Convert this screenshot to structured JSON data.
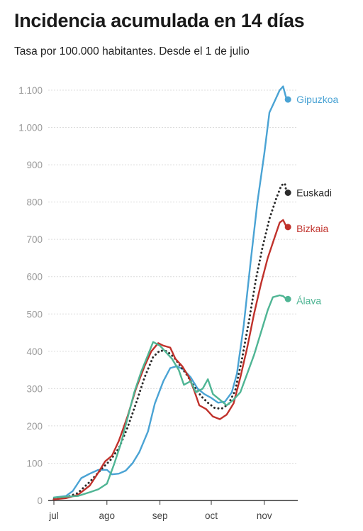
{
  "chart_data": {
    "type": "line",
    "title": "Incidencia acumulada en 14 días",
    "subtitle": "Tasa por 100.000 habitantes. Desde el 1 de julio",
    "xlabel": "",
    "ylabel": "",
    "ylim": [
      0,
      1100
    ],
    "yticks": [
      0,
      100,
      200,
      300,
      400,
      500,
      600,
      700,
      800,
      900,
      1000,
      1100
    ],
    "ytick_labels": [
      "0",
      "100",
      "200",
      "300",
      "400",
      "500",
      "600",
      "700",
      "800",
      "900",
      "1.000",
      "1.100"
    ],
    "xlim": [
      "2020-07-01",
      "2020-11-17"
    ],
    "xticks": [
      {
        "date": "2020-07-01",
        "label": "jul"
      },
      {
        "date": "2020-08-01",
        "label": "ago"
      },
      {
        "date": "2020-09-01",
        "label": "sep"
      },
      {
        "date": "2020-10-01",
        "label": "oct"
      },
      {
        "date": "2020-11-01",
        "label": "nov"
      }
    ],
    "grid": true,
    "legend": "end-of-line labels",
    "series": [
      {
        "name": "Gipuzkoa",
        "color": "#4aa3d4",
        "style": "solid",
        "points": [
          [
            "2020-07-01",
            8
          ],
          [
            "2020-07-08",
            12
          ],
          [
            "2020-07-12",
            25
          ],
          [
            "2020-07-17",
            60
          ],
          [
            "2020-07-22",
            72
          ],
          [
            "2020-07-27",
            82
          ],
          [
            "2020-08-01",
            82
          ],
          [
            "2020-08-04",
            70
          ],
          [
            "2020-08-08",
            72
          ],
          [
            "2020-08-12",
            80
          ],
          [
            "2020-08-16",
            100
          ],
          [
            "2020-08-20",
            130
          ],
          [
            "2020-08-25",
            185
          ],
          [
            "2020-08-29",
            260
          ],
          [
            "2020-09-03",
            320
          ],
          [
            "2020-09-07",
            355
          ],
          [
            "2020-09-11",
            360
          ],
          [
            "2020-09-15",
            350
          ],
          [
            "2020-09-19",
            330
          ],
          [
            "2020-09-23",
            300
          ],
          [
            "2020-09-27",
            285
          ],
          [
            "2020-10-01",
            275
          ],
          [
            "2020-10-05",
            262
          ],
          [
            "2020-10-09",
            265
          ],
          [
            "2020-10-13",
            290
          ],
          [
            "2020-10-16",
            340
          ],
          [
            "2020-10-20",
            470
          ],
          [
            "2020-10-24",
            640
          ],
          [
            "2020-10-28",
            800
          ],
          [
            "2020-11-01",
            930
          ],
          [
            "2020-11-04",
            1040
          ],
          [
            "2020-11-07",
            1070
          ],
          [
            "2020-11-10",
            1100
          ],
          [
            "2020-11-12",
            1110
          ],
          [
            "2020-11-14",
            1075
          ]
        ],
        "end_value": 1075
      },
      {
        "name": "Euskadi",
        "color": "#2b2b2b",
        "style": "dotted",
        "points": [
          [
            "2020-07-01",
            3
          ],
          [
            "2020-07-08",
            8
          ],
          [
            "2020-07-15",
            20
          ],
          [
            "2020-07-22",
            50
          ],
          [
            "2020-07-29",
            85
          ],
          [
            "2020-08-03",
            108
          ],
          [
            "2020-08-08",
            140
          ],
          [
            "2020-08-13",
            195
          ],
          [
            "2020-08-18",
            260
          ],
          [
            "2020-08-23",
            330
          ],
          [
            "2020-08-28",
            385
          ],
          [
            "2020-09-01",
            402
          ],
          [
            "2020-09-05",
            400
          ],
          [
            "2020-09-09",
            385
          ],
          [
            "2020-09-13",
            360
          ],
          [
            "2020-09-17",
            335
          ],
          [
            "2020-09-21",
            305
          ],
          [
            "2020-09-25",
            280
          ],
          [
            "2020-09-29",
            262
          ],
          [
            "2020-10-03",
            248
          ],
          [
            "2020-10-07",
            246
          ],
          [
            "2020-10-11",
            258
          ],
          [
            "2020-10-15",
            295
          ],
          [
            "2020-10-19",
            380
          ],
          [
            "2020-10-23",
            480
          ],
          [
            "2020-10-27",
            590
          ],
          [
            "2020-10-31",
            680
          ],
          [
            "2020-11-04",
            755
          ],
          [
            "2020-11-08",
            810
          ],
          [
            "2020-11-11",
            845
          ],
          [
            "2020-11-13",
            850
          ],
          [
            "2020-11-14",
            825
          ]
        ],
        "end_value": 825
      },
      {
        "name": "Bizkaia",
        "color": "#c0312b",
        "style": "solid",
        "points": [
          [
            "2020-07-01",
            3
          ],
          [
            "2020-07-08",
            6
          ],
          [
            "2020-07-15",
            15
          ],
          [
            "2020-07-22",
            40
          ],
          [
            "2020-07-27",
            75
          ],
          [
            "2020-07-31",
            105
          ],
          [
            "2020-08-04",
            120
          ],
          [
            "2020-08-08",
            160
          ],
          [
            "2020-08-13",
            225
          ],
          [
            "2020-08-18",
            300
          ],
          [
            "2020-08-23",
            360
          ],
          [
            "2020-08-27",
            400
          ],
          [
            "2020-08-31",
            422
          ],
          [
            "2020-09-03",
            415
          ],
          [
            "2020-09-07",
            410
          ],
          [
            "2020-09-10",
            380
          ],
          [
            "2020-09-14",
            360
          ],
          [
            "2020-09-18",
            330
          ],
          [
            "2020-09-21",
            295
          ],
          [
            "2020-09-24",
            255
          ],
          [
            "2020-09-28",
            245
          ],
          [
            "2020-10-02",
            225
          ],
          [
            "2020-10-06",
            218
          ],
          [
            "2020-10-10",
            230
          ],
          [
            "2020-10-14",
            260
          ],
          [
            "2020-10-18",
            330
          ],
          [
            "2020-10-22",
            410
          ],
          [
            "2020-10-26",
            500
          ],
          [
            "2020-10-30",
            580
          ],
          [
            "2020-11-03",
            650
          ],
          [
            "2020-11-07",
            705
          ],
          [
            "2020-11-10",
            745
          ],
          [
            "2020-11-12",
            752
          ],
          [
            "2020-11-14",
            733
          ]
        ],
        "end_value": 733
      },
      {
        "name": "Álava",
        "color": "#4fb594",
        "style": "solid",
        "points": [
          [
            "2020-07-01",
            8
          ],
          [
            "2020-07-08",
            10
          ],
          [
            "2020-07-15",
            12
          ],
          [
            "2020-07-22",
            22
          ],
          [
            "2020-07-27",
            30
          ],
          [
            "2020-08-01",
            45
          ],
          [
            "2020-08-05",
            95
          ],
          [
            "2020-08-09",
            150
          ],
          [
            "2020-08-13",
            220
          ],
          [
            "2020-08-17",
            290
          ],
          [
            "2020-08-21",
            345
          ],
          [
            "2020-08-25",
            390
          ],
          [
            "2020-08-28",
            425
          ],
          [
            "2020-09-01",
            415
          ],
          [
            "2020-09-04",
            400
          ],
          [
            "2020-09-08",
            380
          ],
          [
            "2020-09-12",
            350
          ],
          [
            "2020-09-15",
            310
          ],
          [
            "2020-09-19",
            320
          ],
          [
            "2020-09-22",
            290
          ],
          [
            "2020-09-26",
            300
          ],
          [
            "2020-09-29",
            325
          ],
          [
            "2020-10-02",
            285
          ],
          [
            "2020-10-06",
            270
          ],
          [
            "2020-10-10",
            255
          ],
          [
            "2020-10-14",
            270
          ],
          [
            "2020-10-18",
            290
          ],
          [
            "2020-10-22",
            340
          ],
          [
            "2020-10-26",
            390
          ],
          [
            "2020-10-30",
            450
          ],
          [
            "2020-11-03",
            510
          ],
          [
            "2020-11-06",
            545
          ],
          [
            "2020-11-10",
            550
          ],
          [
            "2020-11-12",
            548
          ],
          [
            "2020-11-14",
            540
          ]
        ],
        "end_value": 540
      }
    ]
  }
}
